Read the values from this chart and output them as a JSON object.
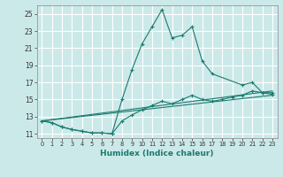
{
  "xlabel": "Humidex (Indice chaleur)",
  "background_color": "#cce9e9",
  "grid_color": "#ffffff",
  "line_color": "#1a7a6e",
  "xlim": [
    -0.5,
    23.5
  ],
  "ylim": [
    10.5,
    26.0
  ],
  "xticks": [
    0,
    1,
    2,
    3,
    4,
    5,
    6,
    7,
    8,
    9,
    10,
    11,
    12,
    13,
    14,
    15,
    16,
    17,
    18,
    19,
    20,
    21,
    22,
    23
  ],
  "yticks": [
    11,
    13,
    15,
    17,
    19,
    21,
    23,
    25
  ],
  "series1_x": [
    0,
    1,
    2,
    3,
    4,
    5,
    6,
    7,
    8,
    9,
    10,
    11,
    12,
    13,
    14,
    15,
    16,
    17,
    20,
    21,
    22,
    23
  ],
  "series1_y": [
    12.5,
    12.3,
    11.8,
    11.5,
    11.3,
    11.1,
    11.1,
    11.0,
    15.0,
    18.5,
    21.5,
    23.5,
    25.5,
    22.2,
    22.5,
    23.5,
    19.5,
    18.0,
    16.7,
    17.0,
    15.8,
    15.8
  ],
  "series2_x": [
    0,
    1,
    2,
    3,
    4,
    5,
    6,
    7,
    8,
    9,
    10,
    11,
    12,
    13,
    14,
    15,
    16,
    17,
    18,
    19,
    20,
    21,
    22,
    23
  ],
  "series2_y": [
    12.5,
    12.3,
    11.8,
    11.5,
    11.3,
    11.1,
    11.1,
    11.0,
    12.5,
    13.2,
    13.8,
    14.3,
    14.8,
    14.5,
    15.0,
    15.5,
    15.0,
    14.8,
    15.0,
    15.3,
    15.5,
    16.0,
    15.8,
    15.6
  ],
  "series3_x": [
    0,
    23
  ],
  "series3_y": [
    12.5,
    16.0
  ],
  "series4_x": [
    0,
    23
  ],
  "series4_y": [
    12.5,
    15.5
  ]
}
